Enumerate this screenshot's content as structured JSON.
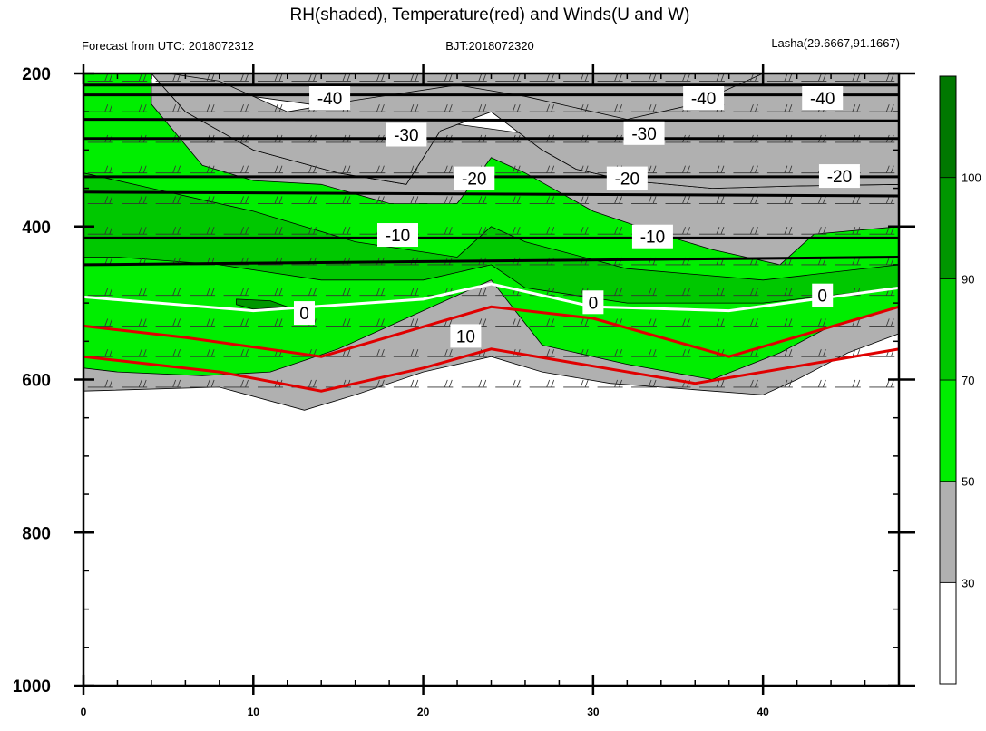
{
  "title": "RH(shaded), Temperature(red) and Winds(U and W)",
  "info": {
    "left": "Forecast from UTC: 2018072312",
    "center": "BJT:2018072320",
    "right": "Lasha(29.6667,91.1667)"
  },
  "chart_data": {
    "type": "contour",
    "title": "RH(shaded), Temperature(red) and Winds(U and W)",
    "x_axis": {
      "range": [
        0,
        48
      ],
      "ticks": [
        "0",
        "10",
        "20",
        "30",
        "40"
      ],
      "tick_values": [
        0,
        10,
        20,
        30,
        40
      ],
      "minor_step": 2
    },
    "y_axis": {
      "range": [
        1000,
        200
      ],
      "ticks": [
        "200",
        "400",
        "600",
        "800",
        "1000"
      ],
      "tick_values": [
        200,
        400,
        600,
        800,
        1000
      ],
      "minor_step": 50
    },
    "rh_colorbar": {
      "labels": [
        "30",
        "50",
        "70",
        "90",
        "100"
      ],
      "bands": [
        {
          "lo": 0,
          "hi": 30,
          "color": "#ffffff"
        },
        {
          "lo": 30,
          "hi": 50,
          "color": "#b0b0b0"
        },
        {
          "lo": 50,
          "hi": 70,
          "color": "#00ee00"
        },
        {
          "lo": 70,
          "hi": 90,
          "color": "#00c800"
        },
        {
          "lo": 90,
          "hi": 100,
          "color": "#009600"
        },
        {
          "lo": 100,
          "hi": 110,
          "color": "#007800"
        }
      ]
    },
    "rh_regions": [
      {
        "level": 30,
        "color": "#b0b0b0",
        "points": [
          [
            0,
            200
          ],
          [
            48,
            200
          ],
          [
            48,
            345
          ],
          [
            42,
            347
          ],
          [
            37,
            350
          ],
          [
            32,
            340
          ],
          [
            29,
            325
          ],
          [
            27,
            300
          ],
          [
            24,
            250
          ],
          [
            21,
            275
          ],
          [
            19,
            345
          ],
          [
            15,
            330
          ],
          [
            10,
            300
          ],
          [
            6,
            250
          ],
          [
            4,
            200
          ],
          [
            0,
            200
          ],
          [
            0,
            615
          ],
          [
            8,
            610
          ],
          [
            13,
            640
          ],
          [
            16,
            620
          ],
          [
            20,
            590
          ],
          [
            24,
            570
          ],
          [
            27,
            590
          ],
          [
            31,
            605
          ],
          [
            37,
            615
          ],
          [
            40,
            620
          ],
          [
            42,
            600
          ],
          [
            45,
            565
          ],
          [
            48,
            540
          ],
          [
            48,
            345
          ]
        ]
      },
      {
        "level": 30,
        "color": "#b0b0b0",
        "points": [
          [
            0,
            200
          ],
          [
            4,
            200
          ],
          [
            6,
            250
          ],
          [
            10,
            300
          ],
          [
            15,
            330
          ],
          [
            19,
            345
          ],
          [
            21,
            275
          ],
          [
            24,
            250
          ],
          [
            27,
            300
          ],
          [
            29,
            325
          ],
          [
            32,
            340
          ],
          [
            37,
            350
          ],
          [
            42,
            347
          ],
          [
            48,
            345
          ],
          [
            48,
            200
          ],
          [
            40,
            200
          ],
          [
            36,
            240
          ],
          [
            32,
            260
          ],
          [
            26,
            230
          ],
          [
            22,
            215
          ],
          [
            16,
            235
          ],
          [
            12,
            250
          ],
          [
            8,
            210
          ],
          [
            5,
            200
          ]
        ]
      },
      {
        "level": 50,
        "color": "#00ee00",
        "points": [
          [
            0,
            200
          ],
          [
            4,
            200
          ],
          [
            4,
            240
          ],
          [
            7,
            320
          ],
          [
            10,
            340
          ],
          [
            14,
            345
          ],
          [
            18,
            370
          ],
          [
            22,
            370
          ],
          [
            24,
            310
          ],
          [
            26,
            330
          ],
          [
            30,
            380
          ],
          [
            34,
            410
          ],
          [
            37,
            430
          ],
          [
            41,
            450
          ],
          [
            43,
            410
          ],
          [
            48,
            400
          ],
          [
            48,
            505
          ],
          [
            44,
            530
          ],
          [
            41,
            565
          ],
          [
            37,
            600
          ],
          [
            32,
            580
          ],
          [
            27,
            555
          ],
          [
            24,
            470
          ],
          [
            19,
            520
          ],
          [
            15,
            560
          ],
          [
            11,
            590
          ],
          [
            7,
            595
          ],
          [
            2,
            590
          ],
          [
            0,
            585
          ]
        ]
      },
      {
        "level": 70,
        "color": "#00c800",
        "points": [
          [
            0,
            330
          ],
          [
            4,
            350
          ],
          [
            10,
            380
          ],
          [
            16,
            420
          ],
          [
            22,
            440
          ],
          [
            24,
            400
          ],
          [
            26,
            420
          ],
          [
            32,
            455
          ],
          [
            40,
            470
          ],
          [
            48,
            450
          ],
          [
            48,
            480
          ],
          [
            40,
            500
          ],
          [
            32,
            500
          ],
          [
            26,
            480
          ],
          [
            24,
            450
          ],
          [
            20,
            470
          ],
          [
            14,
            470
          ],
          [
            8,
            450
          ],
          [
            2,
            440
          ],
          [
            0,
            440
          ]
        ]
      },
      {
        "level": 90,
        "color": "#009600",
        "points": [
          [
            9,
            495
          ],
          [
            11,
            497
          ],
          [
            12,
            505
          ],
          [
            10,
            508
          ],
          [
            9,
            502
          ]
        ]
      }
    ],
    "temperature_contours": [
      {
        "label": "-40",
        "color": "#000000",
        "points": [
          [
            0,
            215
          ],
          [
            48,
            215
          ]
        ]
      },
      {
        "label": "-40",
        "color": "#000000",
        "points": [
          [
            0,
            228
          ],
          [
            48,
            228
          ]
        ]
      },
      {
        "label": "-30",
        "color": "#000000",
        "points": [
          [
            0,
            260
          ],
          [
            48,
            262
          ]
        ]
      },
      {
        "label": "-30",
        "color": "#000000",
        "points": [
          [
            0,
            285
          ],
          [
            48,
            285
          ]
        ]
      },
      {
        "label": "-20",
        "color": "#000000",
        "points": [
          [
            0,
            335
          ],
          [
            48,
            335
          ]
        ]
      },
      {
        "label": "-20",
        "color": "#000000",
        "points": [
          [
            0,
            355
          ],
          [
            48,
            360
          ]
        ]
      },
      {
        "label": "-10",
        "color": "#000000",
        "points": [
          [
            0,
            415
          ],
          [
            48,
            415
          ]
        ]
      },
      {
        "label": "-10",
        "color": "#000000",
        "points": [
          [
            0,
            450
          ],
          [
            48,
            440
          ]
        ]
      },
      {
        "label": "0",
        "color": "#ffffff",
        "points": [
          [
            0,
            492
          ],
          [
            10,
            510
          ],
          [
            20,
            495
          ],
          [
            24,
            475
          ],
          [
            30,
            505
          ],
          [
            38,
            510
          ],
          [
            48,
            480
          ]
        ]
      },
      {
        "label": "10",
        "color": "#e00000",
        "points": [
          [
            0,
            530
          ],
          [
            6,
            545
          ],
          [
            14,
            570
          ],
          [
            24,
            505
          ],
          [
            30,
            520
          ],
          [
            38,
            570
          ],
          [
            48,
            505
          ]
        ]
      },
      {
        "label": "10",
        "color": "#e00000",
        "points": [
          [
            0,
            570
          ],
          [
            8,
            590
          ],
          [
            14,
            615
          ],
          [
            20,
            585
          ],
          [
            24,
            560
          ],
          [
            28,
            575
          ],
          [
            36,
            605
          ],
          [
            48,
            560
          ]
        ]
      }
    ],
    "contour_labels": [
      {
        "text": "-40",
        "x": 14.5,
        "y": 232
      },
      {
        "text": "-40",
        "x": 36.5,
        "y": 232
      },
      {
        "text": "-40",
        "x": 43.5,
        "y": 232
      },
      {
        "text": "-30",
        "x": 19,
        "y": 280
      },
      {
        "text": "-30",
        "x": 33,
        "y": 278
      },
      {
        "text": "-20",
        "x": 23,
        "y": 337
      },
      {
        "text": "-20",
        "x": 32,
        "y": 337
      },
      {
        "text": "-20",
        "x": 44.5,
        "y": 334
      },
      {
        "text": "-10",
        "x": 18.5,
        "y": 411
      },
      {
        "text": "-10",
        "x": 33.5,
        "y": 413
      },
      {
        "text": "0",
        "x": 13,
        "y": 513
      },
      {
        "text": "0",
        "x": 30,
        "y": 499
      },
      {
        "text": "0",
        "x": 43.5,
        "y": 490
      },
      {
        "text": "10",
        "x": 22.5,
        "y": 543
      }
    ]
  }
}
